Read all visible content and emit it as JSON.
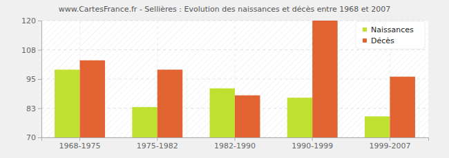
{
  "chart_data": {
    "type": "bar",
    "title": "www.CartesFrance.fr - Sellières : Evolution des naissances et décès entre 1968 et 2007",
    "categories": [
      "1968-1975",
      "1975-1982",
      "1982-1990",
      "1990-1999",
      "1999-2007"
    ],
    "series": [
      {
        "name": "Naissances",
        "color": "#bfe02e",
        "values": [
          99,
          83,
          91,
          87,
          79
        ]
      },
      {
        "name": "Décès",
        "color": "#e06331",
        "values": [
          103,
          99,
          88,
          120,
          96
        ]
      }
    ],
    "ylim": [
      70,
      120
    ],
    "yticks": [
      70,
      {
        "value": 82.5,
        "label": "83"
      },
      95,
      {
        "value": 107.5,
        "label": "108"
      },
      120
    ],
    "grid": true,
    "legend": "top-right"
  }
}
